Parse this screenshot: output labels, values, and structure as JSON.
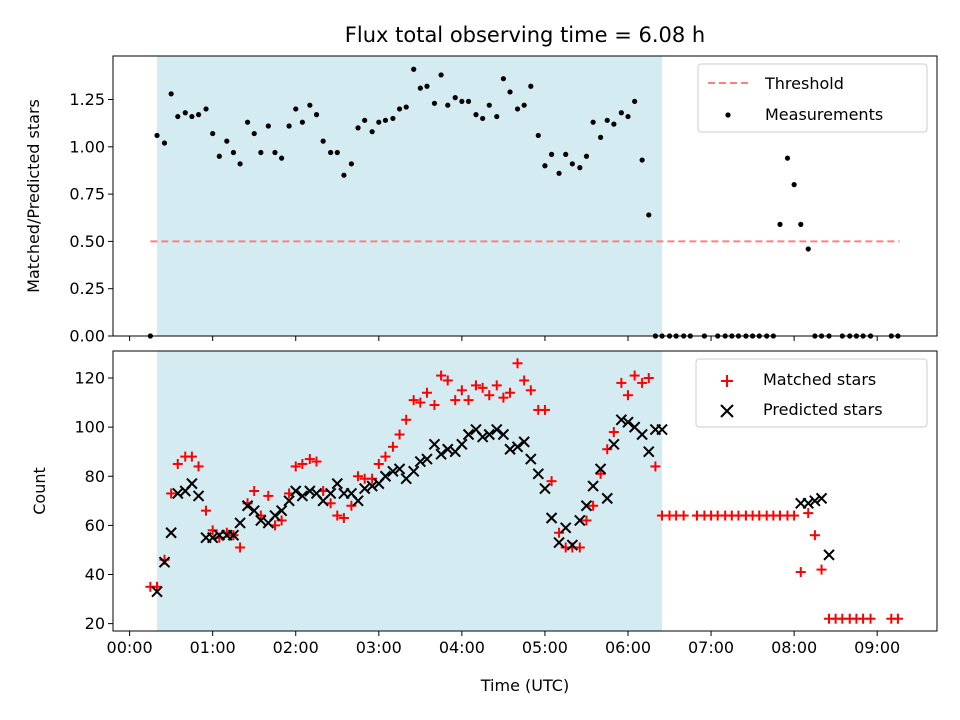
{
  "figure": {
    "title": "Flux total observing time = 6.08 h",
    "xlabel": "Time (UTC)",
    "x_tick_labels": [
      "00:00",
      "01:00",
      "02:00",
      "03:00",
      "04:00",
      "05:00",
      "06:00",
      "07:00",
      "08:00",
      "09:00"
    ]
  },
  "chart_data": [
    {
      "type": "scatter",
      "ylabel": "Matched/Predicted stars",
      "xlim_hours": [
        -0.2,
        9.72
      ],
      "ylim": [
        0,
        1.48
      ],
      "y_tick_labels": [
        "0.00",
        "0.25",
        "0.50",
        "0.75",
        "1.00",
        "1.25"
      ],
      "y_ticks": [
        0,
        0.25,
        0.5,
        0.75,
        1.0,
        1.25
      ],
      "shaded_interval_hours": [
        0.33,
        6.41
      ],
      "shade_color": "#add8e6",
      "threshold": {
        "name": "Threshold",
        "value": 0.5,
        "x_range_hours": [
          0.25,
          9.27
        ],
        "color": "#ff7f7f"
      },
      "legend": {
        "placement": "upper right",
        "entries": [
          "Threshold",
          "Measurements"
        ]
      },
      "series": [
        {
          "name": "Measurements",
          "color": "#000000",
          "x_hours": [
            0.25,
            0.33,
            0.42,
            0.5,
            0.58,
            0.67,
            0.75,
            0.83,
            0.92,
            1.0,
            1.08,
            1.17,
            1.25,
            1.33,
            1.42,
            1.5,
            1.58,
            1.67,
            1.75,
            1.83,
            1.92,
            2.0,
            2.08,
            2.17,
            2.25,
            2.33,
            2.42,
            2.5,
            2.58,
            2.67,
            2.75,
            2.83,
            2.92,
            3.0,
            3.08,
            3.17,
            3.25,
            3.33,
            3.42,
            3.5,
            3.58,
            3.67,
            3.75,
            3.83,
            3.92,
            4.0,
            4.08,
            4.17,
            4.25,
            4.33,
            4.42,
            4.5,
            4.58,
            4.67,
            4.75,
            4.83,
            4.92,
            5.0,
            5.08,
            5.17,
            5.25,
            5.33,
            5.42,
            5.5,
            5.58,
            5.67,
            5.75,
            5.83,
            5.92,
            6.0,
            6.08,
            6.17,
            6.25,
            6.33,
            6.41,
            6.5,
            6.58,
            6.67,
            6.75,
            6.92,
            7.08,
            7.17,
            7.25,
            7.33,
            7.42,
            7.5,
            7.58,
            7.67,
            7.75,
            7.83,
            7.92,
            8.0,
            8.08,
            8.17,
            8.25,
            8.33,
            8.42,
            8.58,
            8.67,
            8.75,
            8.83,
            8.92,
            9.17,
            9.25
          ],
          "y": [
            0.0,
            1.06,
            1.02,
            1.28,
            1.16,
            1.18,
            1.16,
            1.17,
            1.2,
            1.07,
            0.95,
            1.03,
            0.97,
            0.91,
            1.13,
            1.07,
            0.97,
            1.11,
            0.97,
            0.94,
            1.11,
            1.2,
            1.13,
            1.22,
            1.17,
            1.03,
            0.97,
            0.97,
            0.85,
            0.91,
            1.1,
            1.14,
            1.08,
            1.13,
            1.14,
            1.15,
            1.2,
            1.21,
            1.41,
            1.31,
            1.32,
            1.23,
            1.38,
            1.22,
            1.26,
            1.24,
            1.24,
            1.17,
            1.15,
            1.22,
            1.16,
            1.36,
            1.29,
            1.2,
            1.22,
            1.32,
            1.06,
            0.9,
            0.96,
            0.86,
            0.96,
            0.91,
            0.89,
            0.95,
            1.13,
            1.05,
            1.14,
            1.12,
            1.18,
            1.16,
            1.24,
            0.93,
            0.64,
            0.0,
            0.0,
            0.0,
            0.0,
            0.0,
            0.0,
            0.0,
            0.0,
            0.0,
            0.0,
            0.0,
            0.0,
            0.0,
            0.0,
            0.0,
            0.0,
            0.59,
            0.94,
            0.8,
            0.59,
            0.46,
            0.0,
            0.0,
            0.0,
            0.0,
            0.0,
            0.0,
            0.0,
            0.0,
            0.0,
            0.0
          ]
        }
      ]
    },
    {
      "type": "scatter",
      "ylabel": "Count",
      "xlim_hours": [
        -0.2,
        9.72
      ],
      "ylim": [
        17,
        131
      ],
      "y_tick_labels": [
        "20",
        "40",
        "60",
        "80",
        "100",
        "120"
      ],
      "y_ticks": [
        20,
        40,
        60,
        80,
        100,
        120
      ],
      "shaded_interval_hours": [
        0.33,
        6.41
      ],
      "shade_color": "#add8e6",
      "legend": {
        "placement": "upper right",
        "entries": [
          "Matched stars",
          "Predicted stars"
        ]
      },
      "series": [
        {
          "name": "Matched stars",
          "marker": "plus",
          "color": "#ff0000",
          "x_hours": [
            0.25,
            0.33,
            0.42,
            0.5,
            0.58,
            0.67,
            0.75,
            0.83,
            0.92,
            1.0,
            1.08,
            1.17,
            1.25,
            1.33,
            1.42,
            1.5,
            1.58,
            1.67,
            1.75,
            1.83,
            1.92,
            2.0,
            2.08,
            2.17,
            2.25,
            2.33,
            2.42,
            2.5,
            2.58,
            2.67,
            2.75,
            2.83,
            2.92,
            3.0,
            3.08,
            3.17,
            3.25,
            3.33,
            3.42,
            3.5,
            3.58,
            3.67,
            3.75,
            3.83,
            3.92,
            4.0,
            4.08,
            4.17,
            4.25,
            4.33,
            4.42,
            4.5,
            4.58,
            4.67,
            4.75,
            4.83,
            4.92,
            5.0,
            5.08,
            5.17,
            5.25,
            5.33,
            5.42,
            5.5,
            5.58,
            5.67,
            5.75,
            5.83,
            5.92,
            6.0,
            6.08,
            6.17,
            6.25,
            6.33,
            6.41,
            6.5,
            6.58,
            6.67,
            6.83,
            6.92,
            7.0,
            7.08,
            7.17,
            7.25,
            7.33,
            7.42,
            7.5,
            7.58,
            7.67,
            7.75,
            7.83,
            7.92,
            8.0,
            8.08,
            8.17,
            8.25,
            8.33,
            8.42,
            8.5,
            8.58,
            8.67,
            8.75,
            8.83,
            8.92,
            9.17,
            9.25
          ],
          "y": [
            35,
            35,
            46,
            73,
            85,
            88,
            88,
            84,
            66,
            58,
            55,
            57,
            56,
            51,
            69,
            74,
            64,
            72,
            60,
            62,
            73,
            84,
            85,
            87,
            86,
            74,
            69,
            64,
            63,
            68,
            80,
            79,
            79,
            85,
            88,
            92,
            97,
            103,
            111,
            110,
            114,
            109,
            121,
            119,
            111,
            115,
            111,
            117,
            116,
            113,
            117,
            112,
            114,
            126,
            119,
            115,
            107,
            107,
            78,
            57,
            51,
            51,
            51,
            62,
            68,
            81,
            91,
            98,
            118,
            113,
            121,
            118,
            120,
            84,
            64,
            64,
            64,
            64,
            64,
            64,
            64,
            64,
            64,
            64,
            64,
            64,
            64,
            64,
            64,
            64,
            64,
            64,
            64,
            41,
            65,
            56,
            42,
            22,
            22,
            22,
            22,
            22,
            22,
            22,
            22,
            22
          ]
        },
        {
          "name": "Predicted stars",
          "marker": "x",
          "color": "#000000",
          "x_hours": [
            0.33,
            0.42,
            0.5,
            0.58,
            0.67,
            0.75,
            0.83,
            0.92,
            1.0,
            1.08,
            1.17,
            1.25,
            1.33,
            1.42,
            1.5,
            1.58,
            1.67,
            1.75,
            1.83,
            1.92,
            2.0,
            2.08,
            2.17,
            2.25,
            2.33,
            2.42,
            2.5,
            2.58,
            2.67,
            2.75,
            2.83,
            2.92,
            3.0,
            3.08,
            3.17,
            3.25,
            3.33,
            3.42,
            3.5,
            3.58,
            3.67,
            3.75,
            3.83,
            3.92,
            4.0,
            4.08,
            4.17,
            4.25,
            4.33,
            4.42,
            4.5,
            4.58,
            4.67,
            4.75,
            4.83,
            4.92,
            5.0,
            5.08,
            5.17,
            5.25,
            5.33,
            5.42,
            5.5,
            5.58,
            5.67,
            5.75,
            5.83,
            5.92,
            6.0,
            6.08,
            6.17,
            6.25,
            6.33,
            6.41,
            8.08,
            8.17,
            8.25,
            8.33,
            8.42
          ],
          "y": [
            33,
            45,
            57,
            73,
            74,
            77,
            72,
            55,
            55,
            56,
            56,
            56,
            61,
            68,
            66,
            62,
            61,
            64,
            66,
            70,
            74,
            72,
            74,
            73,
            70,
            73,
            77,
            73,
            73,
            70,
            75,
            76,
            77,
            80,
            82,
            83,
            79,
            82,
            86,
            87,
            93,
            89,
            91,
            90,
            93,
            97,
            99,
            96,
            97,
            99,
            97,
            91,
            92,
            94,
            87,
            81,
            75,
            63,
            53,
            59,
            52,
            62,
            68,
            76,
            83,
            71,
            93,
            103,
            102,
            100,
            97,
            90,
            99,
            99,
            69,
            69,
            70,
            71,
            48
          ]
        }
      ]
    }
  ]
}
